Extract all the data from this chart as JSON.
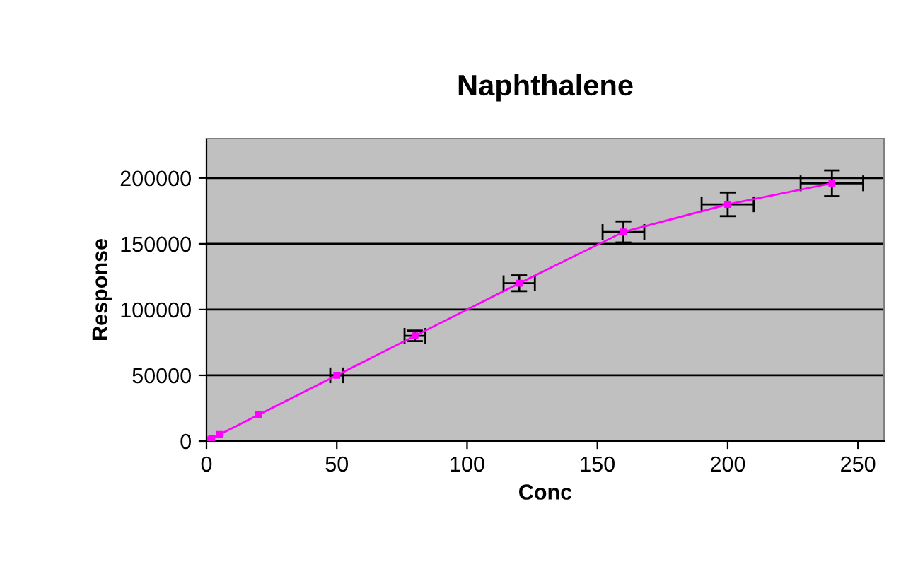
{
  "chart_data": {
    "type": "line",
    "title": "Naphthalene",
    "xlabel": "Conc",
    "ylabel": "Response",
    "x": [
      1,
      2,
      5,
      20,
      50,
      80,
      120,
      160,
      200,
      240
    ],
    "series": [
      {
        "color": "#ff00ff",
        "values": [
          1000,
          2000,
          5000,
          20000,
          50000,
          80000,
          120000,
          159000,
          180000,
          196000
        ],
        "errors": [
          null,
          null,
          null,
          null,
          null,
          4000,
          6000,
          8000,
          9000,
          9800
        ],
        "xerrors": [
          null,
          null,
          null,
          null,
          2.5,
          4,
          6,
          8,
          10,
          12
        ]
      }
    ],
    "xlim": [
      0,
      260
    ],
    "xticks": [
      0,
      50,
      100,
      150,
      200,
      250
    ],
    "ylim": [
      0,
      230000
    ],
    "yticks": [
      0,
      50000,
      100000,
      150000,
      200000
    ],
    "grid": "y",
    "marker": "square",
    "line_style": "solid",
    "legend": false
  }
}
